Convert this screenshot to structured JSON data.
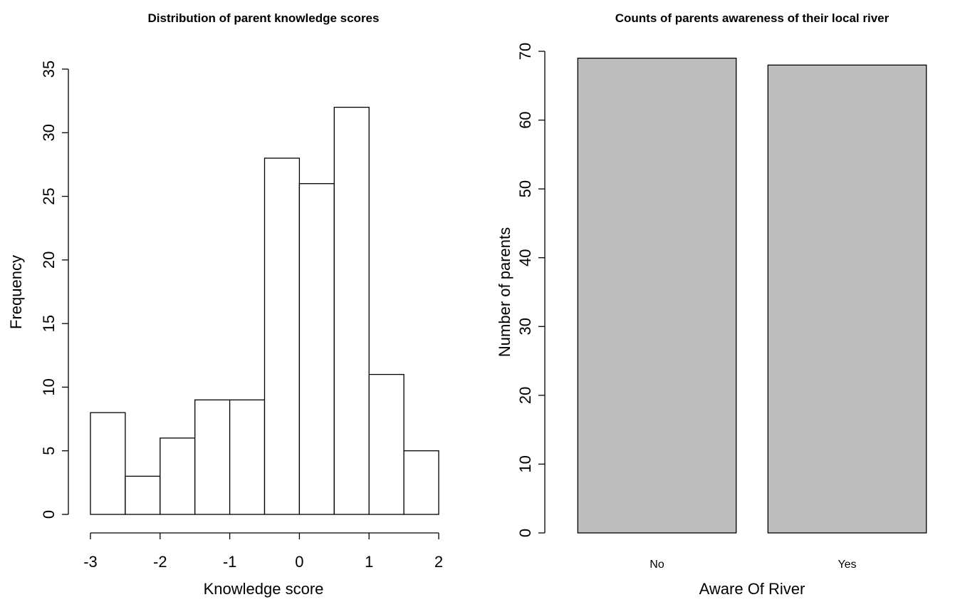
{
  "chart_data": [
    {
      "type": "bar",
      "subtype": "histogram",
      "title": "Distribution of parent knowledge scores",
      "xlabel": "Knowledge score",
      "ylabel": "Frequency",
      "bins": [
        {
          "from": -3.0,
          "to": -2.5,
          "count": 8
        },
        {
          "from": -2.5,
          "to": -2.0,
          "count": 3
        },
        {
          "from": -2.0,
          "to": -1.5,
          "count": 6
        },
        {
          "from": -1.5,
          "to": -1.0,
          "count": 9
        },
        {
          "from": -1.0,
          "to": -0.5,
          "count": 9
        },
        {
          "from": -0.5,
          "to": 0.0,
          "count": 28
        },
        {
          "from": 0.0,
          "to": 0.5,
          "count": 26
        },
        {
          "from": 0.5,
          "to": 1.0,
          "count": 32
        },
        {
          "from": 1.0,
          "to": 1.5,
          "count": 11
        },
        {
          "from": 1.5,
          "to": 2.0,
          "count": 5
        }
      ],
      "xlim": [
        -3,
        2
      ],
      "ylim": [
        0,
        35
      ],
      "xticks": [
        "-3",
        "-2",
        "-1",
        "0",
        "1",
        "2"
      ],
      "yticks": [
        "0",
        "5",
        "10",
        "15",
        "20",
        "25",
        "30",
        "35"
      ],
      "bar_color": "#ffffff",
      "grid": false
    },
    {
      "type": "bar",
      "title": "Counts of parents awareness of their local river",
      "xlabel": "Aware Of River",
      "ylabel": "Number of parents",
      "categories": [
        "No",
        "Yes"
      ],
      "values": [
        69,
        68
      ],
      "ylim": [
        0,
        70
      ],
      "yticks": [
        "0",
        "10",
        "20",
        "30",
        "40",
        "50",
        "60",
        "70"
      ],
      "bar_color": "#bebebe",
      "grid": false
    }
  ]
}
